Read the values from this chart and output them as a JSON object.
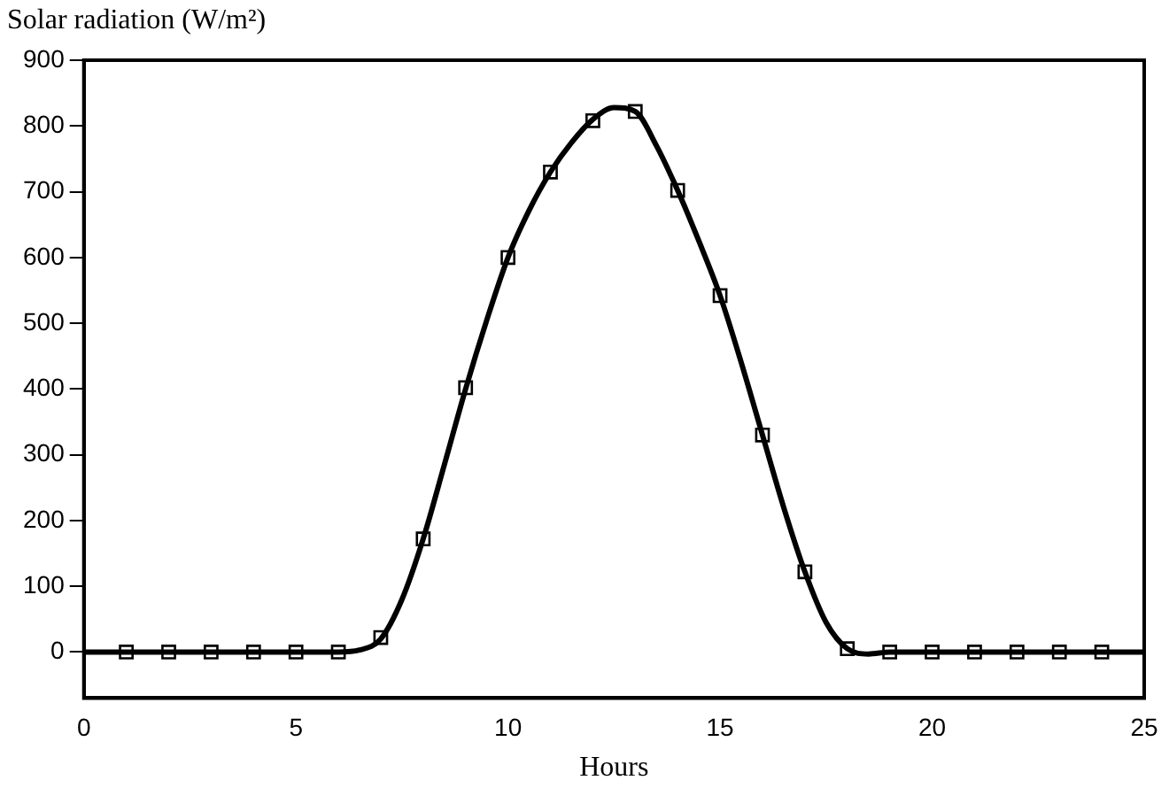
{
  "chart_data": {
    "type": "scatter",
    "ylabel": "Solar radiation (W/m²)",
    "xlabel": "Hours",
    "xlim": [
      0,
      25
    ],
    "xticks": [
      0,
      5,
      10,
      15,
      20,
      25
    ],
    "ylim": [
      -70,
      900
    ],
    "yticks": [
      0,
      100,
      200,
      300,
      400,
      500,
      600,
      700,
      800,
      900
    ],
    "grid": false,
    "legend": false,
    "series": [
      {
        "marker": "square",
        "color": "#000000",
        "x": [
          1,
          2,
          3,
          4,
          5,
          6,
          7,
          8,
          9,
          10,
          11,
          12,
          13,
          14,
          15,
          16,
          17,
          18,
          19,
          20,
          21,
          22,
          23,
          24
        ],
        "values": [
          0,
          0,
          0,
          0,
          0,
          0,
          22,
          172,
          402,
          600,
          730,
          808,
          822,
          702,
          542,
          330,
          122,
          5,
          0,
          0,
          0,
          0,
          0,
          0
        ]
      },
      {
        "type": "line",
        "marker": "none",
        "line_style": "solid",
        "color": "#000000",
        "x": [
          0,
          6,
          6.5,
          7,
          7.5,
          8,
          8.5,
          9,
          9.5,
          10,
          10.5,
          11,
          11.5,
          12,
          12.5,
          13,
          13.5,
          14,
          14.5,
          15,
          15.5,
          16,
          16.5,
          17,
          17.5,
          18,
          18.5,
          19,
          25
        ],
        "values": [
          0,
          0,
          3,
          20,
          80,
          172,
          285,
          400,
          505,
          600,
          672,
          730,
          775,
          810,
          828,
          822,
          770,
          702,
          625,
          542,
          440,
          330,
          220,
          122,
          45,
          5,
          -3,
          0,
          0
        ]
      }
    ]
  }
}
